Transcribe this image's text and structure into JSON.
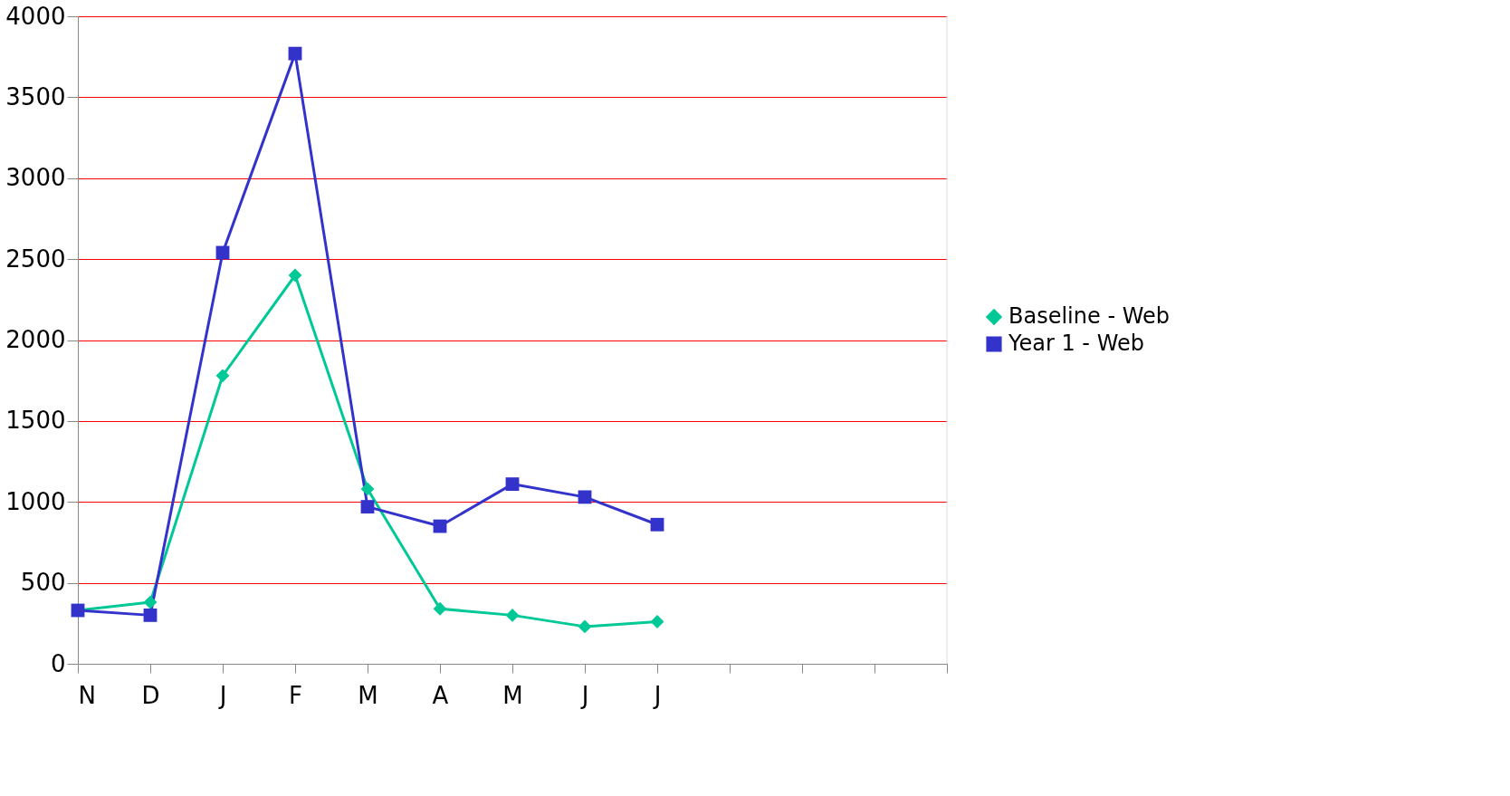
{
  "chart_data": {
    "type": "line",
    "categories": [
      "N",
      "D",
      "J",
      "F",
      "M",
      "A",
      "M",
      "J",
      "J",
      null,
      null,
      null,
      null
    ],
    "series": [
      {
        "name": "Baseline - Web",
        "color": "#00c896",
        "marker": "diamond",
        "values": [
          330,
          380,
          1780,
          2400,
          1080,
          340,
          300,
          230,
          260,
          null,
          null,
          null,
          null
        ]
      },
      {
        "name": "Year 1 - Web",
        "color": "#3333cc",
        "marker": "square",
        "values": [
          330,
          300,
          2540,
          3770,
          970,
          850,
          1110,
          1030,
          860,
          null,
          null,
          null,
          null
        ]
      }
    ],
    "ylim": [
      0,
      4000
    ],
    "yticks": [
      0,
      500,
      1000,
      1500,
      2000,
      2500,
      3000,
      3500,
      4000
    ],
    "grid": "y",
    "legend": "right",
    "line_style": "solid"
  }
}
